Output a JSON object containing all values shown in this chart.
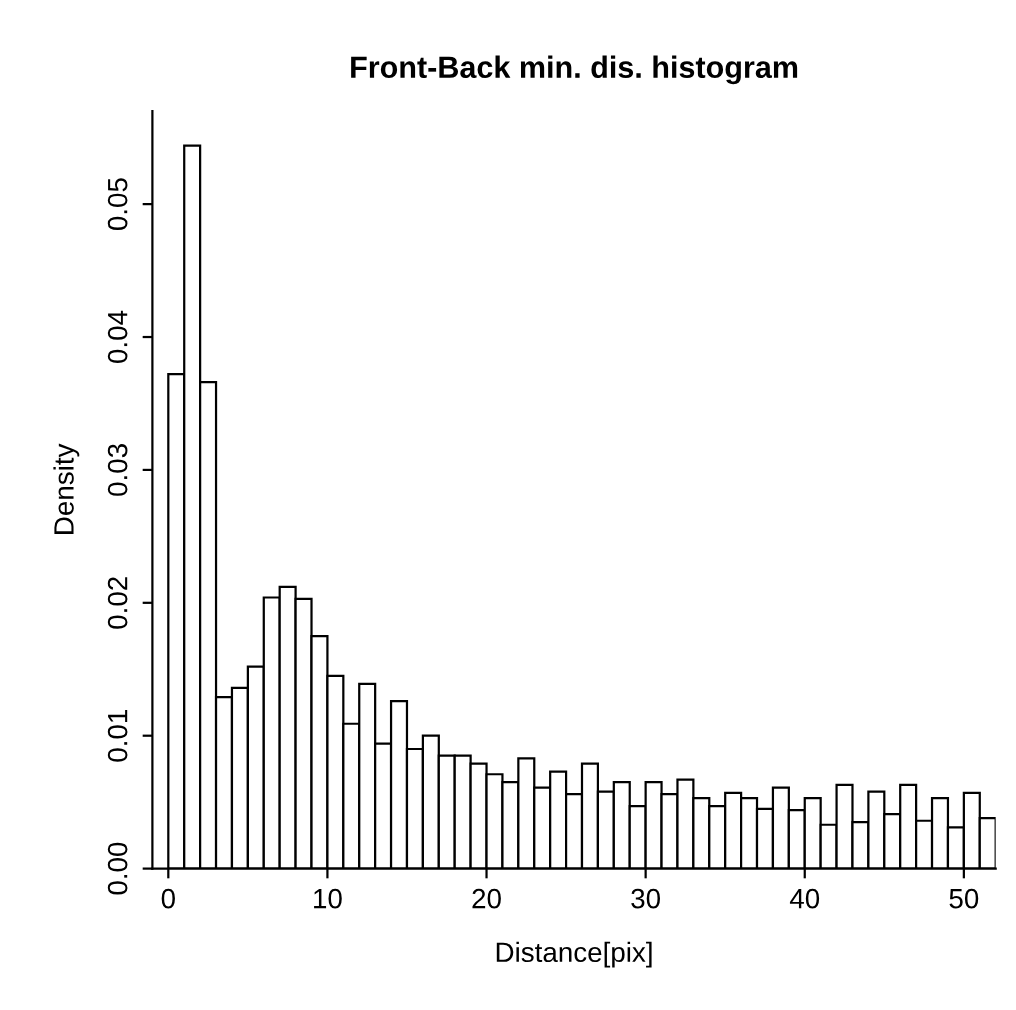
{
  "chart_data": {
    "type": "histogram",
    "title": "Front-Back min. dis. histogram",
    "xlabel": "Distance[pix]",
    "ylabel": "Density",
    "bins": [
      0,
      1,
      2,
      3,
      4,
      5,
      6,
      7,
      8,
      9,
      10,
      11,
      12,
      13,
      14,
      15,
      16,
      17,
      18,
      19,
      20,
      21,
      22,
      23,
      24,
      25,
      26,
      27,
      28,
      29,
      30,
      31,
      32,
      33,
      34,
      35,
      36,
      37,
      38,
      39,
      40,
      41,
      42,
      43,
      44,
      45,
      46,
      47,
      48,
      49,
      50,
      51,
      52
    ],
    "values": [
      0.0372,
      0.0544,
      0.0366,
      0.0129,
      0.0136,
      0.0152,
      0.0204,
      0.0212,
      0.0203,
      0.0175,
      0.0145,
      0.0109,
      0.0139,
      0.0094,
      0.0126,
      0.009,
      0.01,
      0.0085,
      0.0085,
      0.0079,
      0.0071,
      0.0065,
      0.0083,
      0.0061,
      0.0073,
      0.0056,
      0.0079,
      0.0058,
      0.0065,
      0.0047,
      0.0065,
      0.0056,
      0.0067,
      0.0053,
      0.0047,
      0.0057,
      0.0053,
      0.0045,
      0.0061,
      0.0044,
      0.0053,
      0.0033,
      0.0063,
      0.0035,
      0.0058,
      0.0041,
      0.0063,
      0.0036,
      0.0053,
      0.0031,
      0.0057,
      0.0038
    ],
    "color": "#ffffff",
    "xlim": [
      -1,
      52
    ],
    "ylim": [
      0,
      0.057
    ],
    "xticks": [
      0,
      10,
      20,
      30,
      40,
      50
    ],
    "yticks": [
      {
        "value": 0,
        "label": "0.00"
      },
      {
        "value": 0.01,
        "label": "0.01"
      },
      {
        "value": 0.02,
        "label": "0.02"
      },
      {
        "value": 0.03,
        "label": "0.03"
      },
      {
        "value": 0.04,
        "label": "0.04"
      },
      {
        "value": 0.05,
        "label": "0.05"
      }
    ],
    "grid": false,
    "legend": false
  }
}
